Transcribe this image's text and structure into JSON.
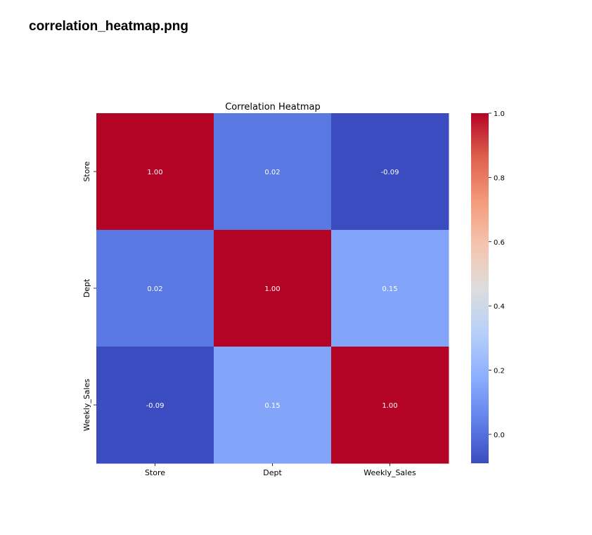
{
  "page": {
    "title": "correlation_heatmap.png"
  },
  "chart_data": {
    "type": "heatmap",
    "title": "Correlation Heatmap",
    "xlabel": "",
    "ylabel": "",
    "x_categories": [
      "Store",
      "Dept",
      "Weekly_Sales"
    ],
    "y_categories": [
      "Store",
      "Dept",
      "Weekly_Sales"
    ],
    "values": [
      [
        1.0,
        0.02,
        -0.09
      ],
      [
        0.02,
        1.0,
        0.15
      ],
      [
        -0.09,
        0.15,
        1.0
      ]
    ],
    "annotations": [
      [
        "1.00",
        "0.02",
        "-0.09"
      ],
      [
        "0.02",
        "1.00",
        "0.15"
      ],
      [
        "-0.09",
        "0.15",
        "1.00"
      ]
    ],
    "colormap": "coolwarm",
    "vmin": -0.09,
    "vmax": 1.0,
    "colorbar": {
      "ticks": [
        0.0,
        0.2,
        0.4,
        0.6,
        0.8,
        1.0
      ],
      "tick_labels": [
        "0.0",
        "0.2",
        "0.4",
        "0.6",
        "0.8",
        "1.0"
      ],
      "placement": "right"
    },
    "grid": false
  }
}
